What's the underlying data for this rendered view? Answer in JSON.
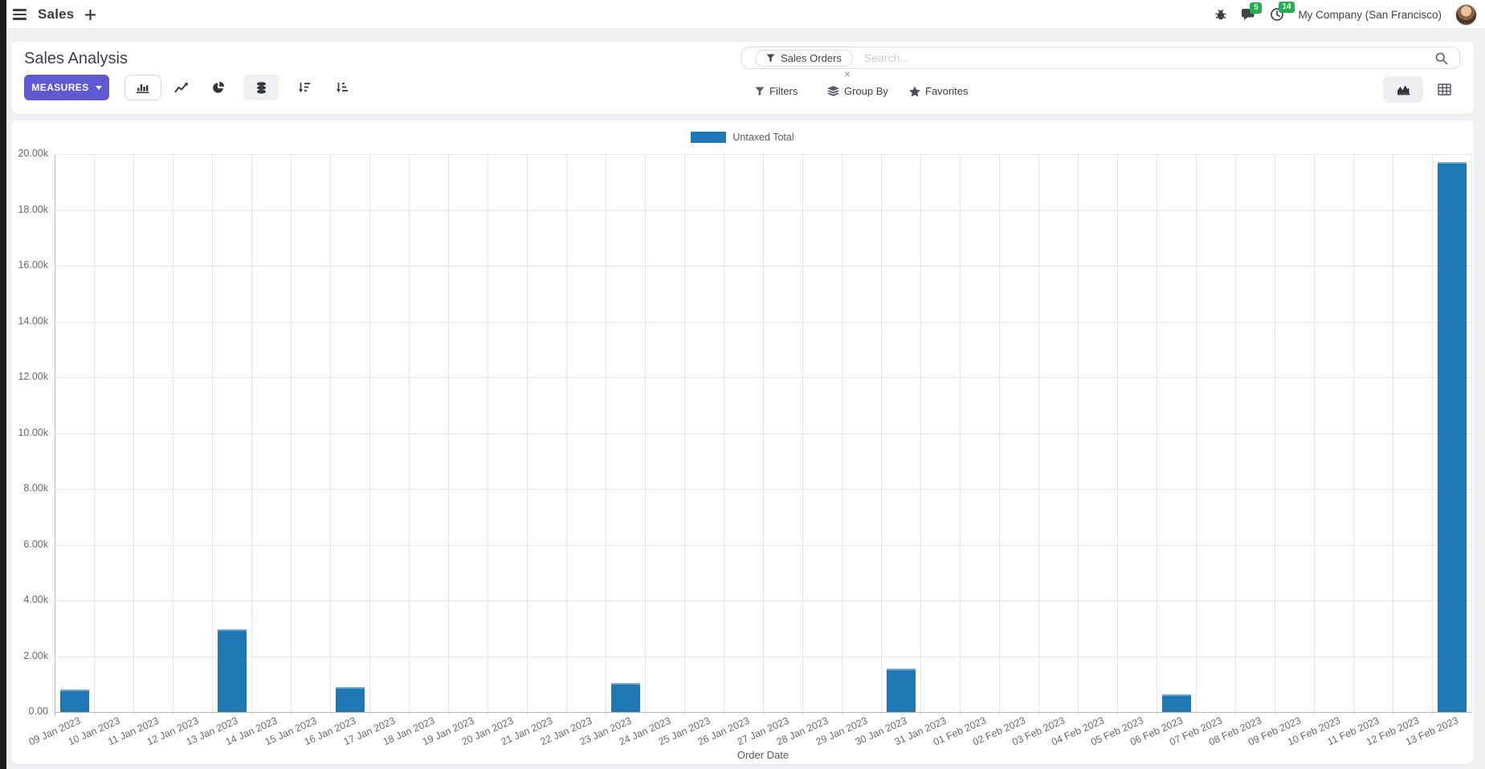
{
  "nav": {
    "app_title": "Sales",
    "messages_badge": "5",
    "activities_badge": "14",
    "company": "My Company (San Francisco)"
  },
  "control_panel": {
    "title": "Sales Analysis",
    "measures_label": "MEASURES",
    "search": {
      "facet_label": "Sales Orders",
      "facet_remove": "×",
      "placeholder": "Search..."
    },
    "filters_label": "Filters",
    "group_by_label": "Group By",
    "favorites_label": "Favorites"
  },
  "chart_data": {
    "type": "bar",
    "title": "",
    "xlabel": "Order Date",
    "ylabel": "",
    "legend": [
      "Untaxed Total"
    ],
    "legend_position": "top",
    "bar_color": "#1f77b4",
    "grid": true,
    "ylim": [
      0,
      20000
    ],
    "ytick_step": 2000,
    "ytick_labels": [
      "0.00",
      "2.00k",
      "4.00k",
      "6.00k",
      "8.00k",
      "10.00k",
      "12.00k",
      "14.00k",
      "16.00k",
      "18.00k",
      "20.00k"
    ],
    "categories": [
      "09 Jan 2023",
      "10 Jan 2023",
      "11 Jan 2023",
      "12 Jan 2023",
      "13 Jan 2023",
      "14 Jan 2023",
      "15 Jan 2023",
      "16 Jan 2023",
      "17 Jan 2023",
      "18 Jan 2023",
      "19 Jan 2023",
      "20 Jan 2023",
      "21 Jan 2023",
      "22 Jan 2023",
      "23 Jan 2023",
      "24 Jan 2023",
      "25 Jan 2023",
      "26 Jan 2023",
      "27 Jan 2023",
      "28 Jan 2023",
      "29 Jan 2023",
      "30 Jan 2023",
      "31 Jan 2023",
      "01 Feb 2023",
      "02 Feb 2023",
      "03 Feb 2023",
      "04 Feb 2023",
      "05 Feb 2023",
      "06 Feb 2023",
      "07 Feb 2023",
      "08 Feb 2023",
      "09 Feb 2023",
      "10 Feb 2023",
      "11 Feb 2023",
      "12 Feb 2023",
      "13 Feb 2023"
    ],
    "values": [
      800,
      0,
      0,
      0,
      2950,
      0,
      0,
      900,
      0,
      0,
      0,
      0,
      0,
      0,
      1050,
      0,
      0,
      0,
      0,
      0,
      0,
      1550,
      0,
      0,
      0,
      0,
      0,
      0,
      640,
      0,
      0,
      0,
      0,
      0,
      0,
      19700
    ]
  }
}
